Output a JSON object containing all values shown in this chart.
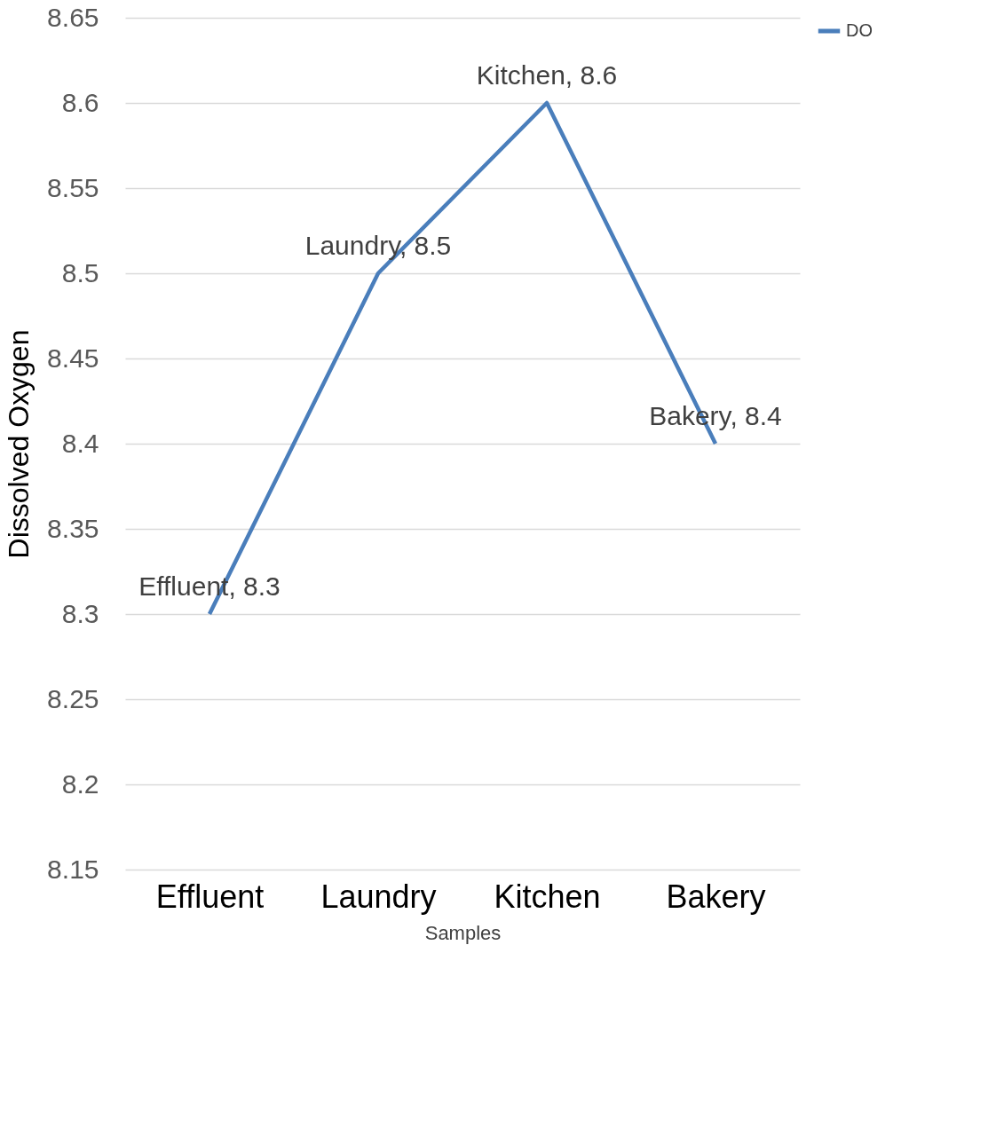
{
  "chart_data": {
    "type": "line",
    "xlabel": "Samples",
    "ylabel": "Dissolved Oxygen",
    "categories": [
      "Effluent",
      "Laundry",
      "Kitchen",
      "Bakery"
    ],
    "series": [
      {
        "name": "DO",
        "color": "#4a7ebb",
        "values": [
          8.3,
          8.5,
          8.6,
          8.4
        ],
        "value_labels": [
          "Effluent, 8.3",
          "Laundry, 8.5",
          "Kitchen, 8.6",
          "Bakery, 8.4"
        ]
      }
    ],
    "ylim": [
      8.15,
      8.65
    ],
    "yticks": [
      8.15,
      8.2,
      8.25,
      8.3,
      8.35,
      8.4,
      8.45,
      8.5,
      8.55,
      8.6,
      8.65
    ],
    "grid": "y",
    "legend": "right",
    "marker": "none",
    "line_style": "solid"
  }
}
